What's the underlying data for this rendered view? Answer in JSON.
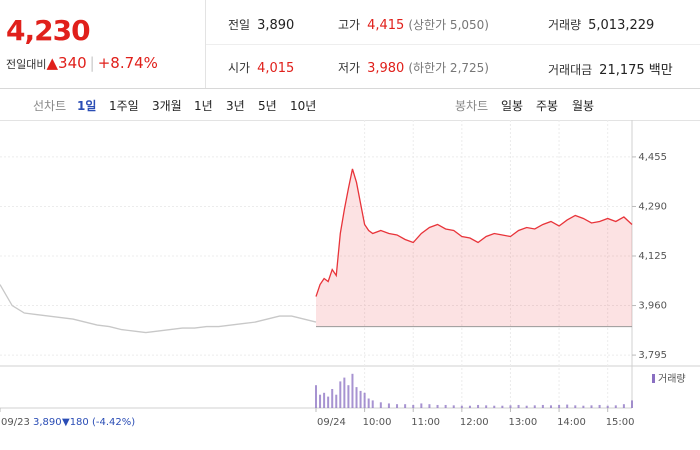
{
  "quote": {
    "price": "4,230",
    "change_label": "전일대비",
    "change": "▲340",
    "rate": "+8.74%"
  },
  "stats": [
    {
      "label": "전일",
      "value": "3,890",
      "color": "#222222"
    },
    {
      "label": "고가",
      "value": "4,415",
      "note": "(상한가 5,050)",
      "color": "#e0201b"
    },
    {
      "label": "거래량",
      "value": "5,013,229",
      "color": "#222222"
    },
    {
      "label": "시가",
      "value": "4,015",
      "color": "#e0201b"
    },
    {
      "label": "저가",
      "value": "3,980",
      "note": "(하한가 2,725)",
      "color": "#e0201b"
    },
    {
      "label": "거래대금",
      "value": "21,175 백만",
      "color": "#222222"
    }
  ],
  "toolbar": {
    "line_label": "선차트",
    "periods": [
      "1일",
      "1주일",
      "3개월",
      "1년",
      "3년",
      "5년",
      "10년"
    ],
    "selected": 0,
    "candle_label": "봉차트",
    "candles": [
      "일봉",
      "주봉",
      "월봉"
    ]
  },
  "chart_data": {
    "type": "line",
    "xlim": [
      0,
      780
    ],
    "ylim": [
      3762,
      4578
    ],
    "xticks": [
      {
        "value": 0,
        "label": "09/23"
      },
      {
        "value": 390,
        "label": "09/24"
      },
      {
        "value": 450,
        "label": "10:00"
      },
      {
        "value": 510,
        "label": "11:00"
      },
      {
        "value": 570,
        "label": "12:00"
      },
      {
        "value": 630,
        "label": "13:00"
      },
      {
        "value": 690,
        "label": "14:00"
      },
      {
        "value": 750,
        "label": "15:00"
      }
    ],
    "yticks": [
      {
        "value": 4455,
        "label": "4,455"
      },
      {
        "value": 4290,
        "label": "4,290"
      },
      {
        "value": 4125,
        "label": "4,125"
      },
      {
        "value": 3960,
        "label": "3,960"
      },
      {
        "value": 3795,
        "label": "3,795"
      }
    ],
    "grid": true,
    "base_value": 3890,
    "prev_note": {
      "close": "3,890",
      "change": "▼180 (-4.42%)"
    },
    "series": [
      {
        "color": "#c8c8c8",
        "fill": false,
        "x": [
          0,
          15,
          30,
          45,
          60,
          75,
          90,
          105,
          120,
          135,
          150,
          165,
          180,
          195,
          210,
          225,
          240,
          255,
          270,
          285,
          300,
          315,
          330,
          345,
          360,
          375,
          390
        ],
        "values": [
          4030,
          3960,
          3935,
          3930,
          3925,
          3920,
          3915,
          3905,
          3895,
          3890,
          3880,
          3875,
          3870,
          3875,
          3880,
          3885,
          3885,
          3890,
          3890,
          3895,
          3900,
          3905,
          3915,
          3925,
          3925,
          3915,
          3905
        ]
      },
      {
        "color": "#e8343a",
        "fill": true,
        "x": [
          390,
          395,
          400,
          405,
          410,
          415,
          420,
          425,
          430,
          435,
          440,
          445,
          450,
          455,
          460,
          470,
          480,
          490,
          500,
          510,
          520,
          530,
          540,
          550,
          560,
          570,
          580,
          590,
          600,
          610,
          620,
          630,
          640,
          650,
          660,
          670,
          680,
          690,
          700,
          710,
          720,
          730,
          740,
          750,
          760,
          770,
          780
        ],
        "values": [
          3990,
          4030,
          4050,
          4040,
          4080,
          4060,
          4200,
          4280,
          4350,
          4415,
          4370,
          4300,
          4230,
          4210,
          4200,
          4210,
          4200,
          4195,
          4180,
          4170,
          4200,
          4220,
          4230,
          4215,
          4210,
          4190,
          4185,
          4170,
          4190,
          4200,
          4195,
          4190,
          4210,
          4220,
          4215,
          4230,
          4240,
          4225,
          4245,
          4260,
          4250,
          4235,
          4240,
          4250,
          4240,
          4255,
          4230
        ]
      }
    ],
    "volume": {
      "label": "거래량",
      "color": "#8a6fc2",
      "ylim": [
        0,
        100
      ],
      "x": [
        390,
        395,
        400,
        405,
        410,
        415,
        420,
        425,
        430,
        435,
        440,
        445,
        450,
        455,
        460,
        470,
        480,
        490,
        500,
        510,
        520,
        530,
        540,
        550,
        560,
        570,
        580,
        590,
        600,
        610,
        620,
        630,
        640,
        650,
        660,
        670,
        680,
        690,
        700,
        710,
        720,
        730,
        740,
        750,
        760,
        770,
        780
      ],
      "values": [
        60,
        35,
        40,
        30,
        50,
        35,
        70,
        80,
        60,
        90,
        55,
        45,
        40,
        25,
        20,
        15,
        12,
        10,
        10,
        8,
        12,
        10,
        8,
        8,
        7,
        6,
        6,
        8,
        7,
        6,
        6,
        7,
        8,
        6,
        7,
        8,
        7,
        8,
        9,
        7,
        6,
        7,
        8,
        6,
        7,
        10,
        20
      ]
    }
  }
}
